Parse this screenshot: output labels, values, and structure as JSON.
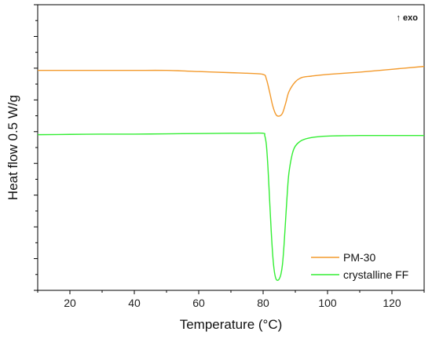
{
  "chart_data": {
    "type": "line",
    "title": "",
    "xlabel": "Temperature (°C)",
    "ylabel": "Heat flow 0.5 W/g",
    "xlim": [
      10,
      130
    ],
    "ylim": [
      0,
      10
    ],
    "x_ticks": [
      20,
      40,
      60,
      80,
      100,
      120
    ],
    "y_tick_labels_shown": false,
    "annotation": "↑ exo",
    "legend_position": "bottom-right",
    "grid": false,
    "series": [
      {
        "name": "PM-30",
        "color": "#f39a2c",
        "x": [
          10,
          20,
          30,
          40,
          50,
          60,
          70,
          75,
          80,
          81,
          82,
          83,
          84,
          85,
          86,
          87,
          88,
          90,
          92,
          95,
          100,
          110,
          120,
          130
        ],
        "y": [
          7.7,
          7.7,
          7.7,
          7.7,
          7.7,
          7.66,
          7.62,
          7.6,
          7.56,
          7.4,
          6.95,
          6.45,
          6.15,
          6.1,
          6.2,
          6.55,
          6.95,
          7.3,
          7.45,
          7.5,
          7.56,
          7.64,
          7.74,
          7.84
        ]
      },
      {
        "name": "crystalline FF",
        "color": "#33ee33",
        "x": [
          10,
          20,
          30,
          40,
          50,
          60,
          70,
          75,
          80,
          80.5,
          81,
          81.5,
          82,
          82.5,
          83,
          83.5,
          84,
          84.5,
          85,
          85.5,
          86,
          86.5,
          87,
          87.5,
          88,
          89,
          90,
          92,
          95,
          100,
          110,
          120,
          130
        ],
        "y": [
          5.45,
          5.46,
          5.47,
          5.47,
          5.48,
          5.49,
          5.5,
          5.5,
          5.5,
          5.42,
          5.1,
          4.3,
          3.2,
          2.1,
          1.2,
          0.65,
          0.4,
          0.35,
          0.4,
          0.55,
          0.9,
          1.6,
          2.5,
          3.4,
          4.1,
          4.75,
          5.05,
          5.25,
          5.35,
          5.4,
          5.42,
          5.42,
          5.42
        ]
      }
    ]
  }
}
